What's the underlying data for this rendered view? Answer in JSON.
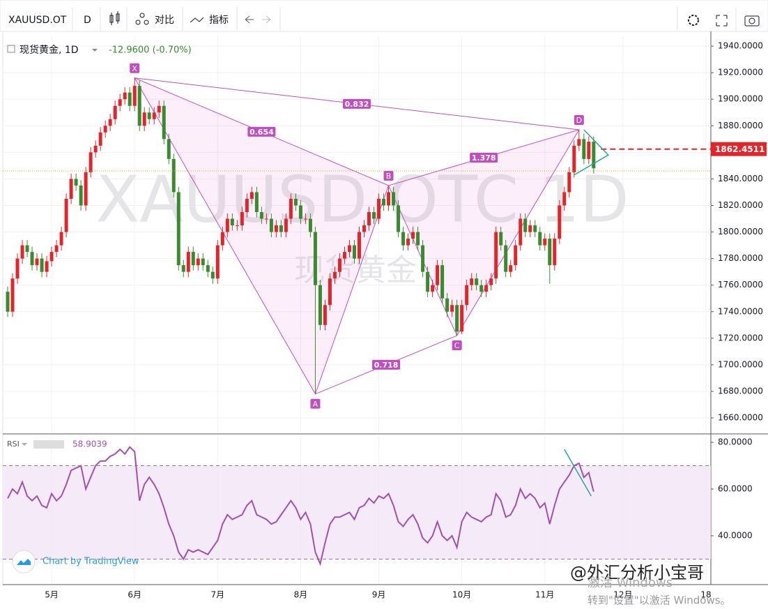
{
  "toolbar": {
    "symbol": "XAUUSD.OT",
    "interval": "D",
    "compare": "对比",
    "indicators": "指标"
  },
  "watermark": {
    "symbol": "XAUUSD.OTC 1D",
    "name": "现货黄金"
  },
  "branding": "Chart by TradingView",
  "overlay": {
    "author": "@外汇分析小宝哥",
    "activate": "激活 Windows",
    "activate_hint": "转到\"设置\"以激活 Windows。"
  },
  "chart_data": [
    {
      "type": "candlestick",
      "legend_name": "现货黄金, 1D",
      "change": "-12.9600 (-0.70%)",
      "up_color": "#e0262b",
      "down_color": "#3b8a2f",
      "open": [
        1755,
        1740,
        1765,
        1780,
        1790,
        1785,
        1775,
        1780,
        1770,
        1778,
        1785,
        1790,
        1800,
        1825,
        1840,
        1835,
        1820,
        1845,
        1860,
        1865,
        1875,
        1880,
        1885,
        1895,
        1900,
        1905,
        1895,
        1910,
        1880,
        1890,
        1885,
        1890,
        1895,
        1870,
        1855,
        1830,
        1775,
        1770,
        1785,
        1775,
        1780,
        1775,
        1770,
        1765,
        1790,
        1800,
        1810,
        1805,
        1805,
        1815,
        1825,
        1830,
        1815,
        1810,
        1810,
        1800,
        1805,
        1800,
        1810,
        1825,
        1820,
        1810,
        1810,
        1800,
        1760,
        1730,
        1745,
        1765,
        1770,
        1780,
        1785,
        1790,
        1780,
        1800,
        1805,
        1815,
        1810,
        1825,
        1820,
        1830,
        1820,
        1800,
        1790,
        1795,
        1800,
        1790,
        1770,
        1755,
        1760,
        1775,
        1750,
        1740,
        1745,
        1725,
        1745,
        1760,
        1765,
        1760,
        1755,
        1760,
        1765,
        1800,
        1790,
        1770,
        1775,
        1790,
        1810,
        1800,
        1805,
        1800,
        1790,
        1795,
        1775,
        1795,
        1820,
        1830,
        1845,
        1865,
        1870,
        1855,
        1868
      ],
      "high": [
        1759,
        1769,
        1784,
        1794,
        1794,
        1789,
        1784,
        1784,
        1782,
        1789,
        1794,
        1804,
        1829,
        1844,
        1844,
        1839,
        1849,
        1864,
        1869,
        1879,
        1884,
        1889,
        1899,
        1904,
        1909,
        1909,
        1916,
        1914,
        1894,
        1894,
        1894,
        1899,
        1899,
        1874,
        1859,
        1834,
        1779,
        1789,
        1789,
        1784,
        1784,
        1779,
        1774,
        1794,
        1804,
        1814,
        1814,
        1809,
        1819,
        1829,
        1834,
        1834,
        1819,
        1814,
        1814,
        1809,
        1809,
        1814,
        1829,
        1829,
        1824,
        1814,
        1814,
        1804,
        1764,
        1749,
        1769,
        1774,
        1784,
        1789,
        1794,
        1794,
        1804,
        1809,
        1819,
        1819,
        1829,
        1829,
        1835,
        1834,
        1824,
        1804,
        1799,
        1804,
        1804,
        1794,
        1774,
        1764,
        1779,
        1779,
        1754,
        1749,
        1749,
        1749,
        1764,
        1769,
        1769,
        1764,
        1764,
        1769,
        1804,
        1804,
        1794,
        1779,
        1794,
        1814,
        1814,
        1809,
        1809,
        1804,
        1799,
        1799,
        1799,
        1824,
        1834,
        1849,
        1869,
        1877,
        1874,
        1872,
        1872
      ],
      "low": [
        1736,
        1736,
        1761,
        1776,
        1781,
        1771,
        1771,
        1766,
        1766,
        1774,
        1781,
        1786,
        1796,
        1821,
        1831,
        1816,
        1816,
        1841,
        1856,
        1861,
        1871,
        1876,
        1881,
        1891,
        1896,
        1891,
        1891,
        1876,
        1876,
        1881,
        1881,
        1886,
        1866,
        1851,
        1826,
        1771,
        1766,
        1766,
        1771,
        1771,
        1771,
        1766,
        1761,
        1761,
        1786,
        1796,
        1801,
        1801,
        1801,
        1811,
        1821,
        1811,
        1806,
        1806,
        1796,
        1796,
        1796,
        1796,
        1806,
        1816,
        1806,
        1806,
        1796,
        1678,
        1726,
        1726,
        1741,
        1761,
        1766,
        1776,
        1781,
        1776,
        1776,
        1796,
        1801,
        1806,
        1806,
        1816,
        1816,
        1816,
        1796,
        1786,
        1786,
        1791,
        1786,
        1766,
        1751,
        1751,
        1756,
        1746,
        1736,
        1736,
        1722,
        1723,
        1741,
        1756,
        1756,
        1751,
        1751,
        1756,
        1761,
        1786,
        1766,
        1766,
        1771,
        1786,
        1796,
        1796,
        1796,
        1786,
        1786,
        1761,
        1771,
        1791,
        1816,
        1826,
        1841,
        1861,
        1851,
        1851,
        1844
      ],
      "close": [
        1740,
        1765,
        1780,
        1790,
        1785,
        1775,
        1780,
        1770,
        1778,
        1785,
        1790,
        1800,
        1825,
        1840,
        1835,
        1820,
        1845,
        1860,
        1865,
        1875,
        1880,
        1885,
        1895,
        1900,
        1905,
        1895,
        1910,
        1880,
        1890,
        1885,
        1890,
        1895,
        1870,
        1855,
        1830,
        1775,
        1770,
        1785,
        1775,
        1780,
        1775,
        1770,
        1765,
        1790,
        1800,
        1810,
        1805,
        1805,
        1815,
        1825,
        1830,
        1815,
        1810,
        1810,
        1800,
        1805,
        1800,
        1810,
        1825,
        1820,
        1810,
        1810,
        1800,
        1760,
        1730,
        1745,
        1765,
        1770,
        1780,
        1785,
        1790,
        1780,
        1800,
        1805,
        1815,
        1810,
        1825,
        1820,
        1830,
        1820,
        1800,
        1790,
        1795,
        1800,
        1790,
        1770,
        1755,
        1760,
        1775,
        1750,
        1740,
        1745,
        1725,
        1745,
        1760,
        1765,
        1760,
        1755,
        1760,
        1765,
        1800,
        1790,
        1770,
        1775,
        1790,
        1810,
        1800,
        1805,
        1800,
        1790,
        1795,
        1775,
        1795,
        1820,
        1830,
        1845,
        1865,
        1870,
        1855,
        1868,
        1848
      ],
      "xlim": [
        -1,
        144
      ],
      "xticks": [
        {
          "value": 9,
          "label": "5月"
        },
        {
          "value": 26,
          "label": "6月"
        },
        {
          "value": 43,
          "label": "7月"
        },
        {
          "value": 60,
          "label": "8月"
        },
        {
          "value": 76,
          "label": "9月"
        },
        {
          "value": 93,
          "label": "10月"
        },
        {
          "value": 110,
          "label": "11月"
        },
        {
          "value": 126,
          "label": "12月"
        },
        {
          "value": 143,
          "label": "18"
        }
      ],
      "ylim": [
        1649,
        1947.4
      ],
      "yticks": [
        {
          "value": 1660,
          "label": "1660.0000"
        },
        {
          "value": 1680,
          "label": "1680.0000"
        },
        {
          "value": 1700,
          "label": "1700.0000"
        },
        {
          "value": 1720,
          "label": "1720.0000"
        },
        {
          "value": 1740,
          "label": "1740.0000"
        },
        {
          "value": 1760,
          "label": "1760.0000"
        },
        {
          "value": 1780,
          "label": "1780.0000"
        },
        {
          "value": 1800,
          "label": "1800.0000"
        },
        {
          "value": 1820,
          "label": "1820.0000"
        },
        {
          "value": 1840,
          "label": "1840.0000"
        },
        {
          "value": 1860,
          "label": "1860.0000"
        },
        {
          "value": 1880,
          "label": "1880.0000"
        },
        {
          "value": 1900,
          "label": "1900.0000"
        },
        {
          "value": 1920,
          "label": "1920.0000"
        },
        {
          "value": 1940,
          "label": "1940.0000"
        }
      ],
      "grid": true,
      "current_price": 1862.4511,
      "reference_line": 1846,
      "pattern": {
        "color": "#c04ec0",
        "points": [
          {
            "label": "X",
            "x": 26,
            "y": 1916
          },
          {
            "label": "A",
            "x": 63,
            "y": 1678
          },
          {
            "label": "B",
            "x": 78,
            "y": 1835
          },
          {
            "label": "C",
            "x": 92,
            "y": 1722
          },
          {
            "label": "D",
            "x": 117,
            "y": 1877
          }
        ],
        "ratios": [
          0.654,
          0.832,
          1.378,
          0.718
        ]
      }
    },
    {
      "type": "line",
      "name": "RSI",
      "color": "#a050b0",
      "ylim": [
        20,
        82.7
      ],
      "band": [
        30,
        70
      ],
      "yticks": [
        {
          "value": 40,
          "label": "40.0000"
        },
        {
          "value": 60,
          "label": "60.0000"
        },
        {
          "value": 80,
          "label": "80.0000"
        }
      ],
      "values": [
        56,
        60,
        58,
        63,
        57,
        55,
        57,
        53,
        52,
        58,
        55,
        57,
        62,
        68,
        69,
        70,
        60,
        65,
        70,
        72,
        72,
        74,
        75,
        77,
        75,
        78,
        76,
        55,
        62,
        65,
        62,
        58,
        52,
        45,
        40,
        33,
        30,
        34,
        33,
        34,
        33,
        32,
        35,
        38,
        45,
        49,
        47,
        48,
        49,
        53,
        55,
        49,
        48,
        47,
        45,
        46,
        49,
        52,
        55,
        52,
        47,
        50,
        45,
        33,
        28,
        37,
        45,
        48,
        48,
        49,
        50,
        47,
        52,
        53,
        56,
        54,
        57,
        56,
        58,
        53,
        46,
        44,
        47,
        49,
        45,
        39,
        37,
        40,
        46,
        40,
        38,
        40,
        35,
        46,
        50,
        48,
        47,
        46,
        48,
        49,
        58,
        55,
        48,
        49,
        53,
        60,
        56,
        58,
        56,
        52,
        54,
        45,
        53,
        60,
        63,
        66,
        70,
        71,
        65,
        67,
        58.9039
      ]
    }
  ]
}
